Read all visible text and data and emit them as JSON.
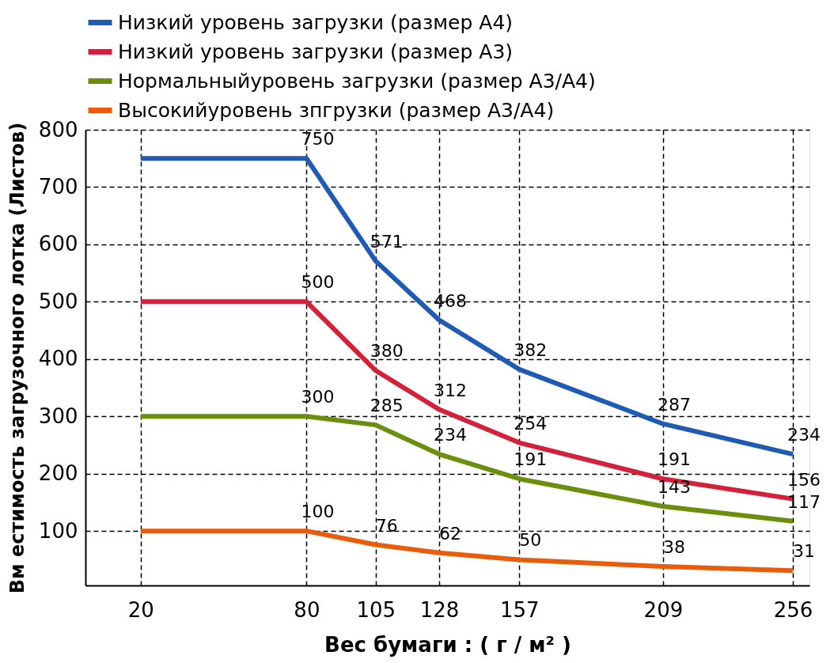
{
  "chart_data": {
    "type": "line",
    "xlabel": "Вес бумаги : ( г / м² )",
    "ylabel": "Вм естимость загрузочного лотка (Листов)",
    "x": [
      20,
      80,
      105,
      128,
      157,
      209,
      256
    ],
    "xlim": [
      0,
      262
    ],
    "xticks": [
      20,
      80,
      105,
      128,
      157,
      209,
      256
    ],
    "ylim": [
      5,
      800
    ],
    "yticks": [
      100,
      200,
      300,
      400,
      500,
      600,
      700,
      800
    ],
    "grid": true,
    "legend": "top",
    "marker": "none",
    "line_style": "solid",
    "series": [
      {
        "name": "Низкий уровень загрузки (размер A4)",
        "color": "#1f5bb5",
        "values": [
          750,
          750,
          571,
          468,
          382,
          287,
          234
        ],
        "value_labels": [
          null,
          "750",
          "571",
          "468",
          "382",
          "287",
          "234"
        ]
      },
      {
        "name": "Низкий уровень загрузки (размер A3)",
        "color": "#d5203a",
        "values": [
          500,
          500,
          380,
          312,
          254,
          191,
          156
        ],
        "value_labels": [
          null,
          "500",
          "380",
          "312",
          "254",
          "191",
          "156"
        ]
      },
      {
        "name": "Нормальныйуровень загрузки (размер A3/A4)",
        "color": "#6b8e0f",
        "values": [
          300,
          300,
          285,
          234,
          191,
          143,
          117
        ],
        "value_labels": [
          null,
          "300",
          "285",
          "234",
          "191",
          "143",
          "117"
        ]
      },
      {
        "name": "Высокийуровень зпгрузки (размер A3/A4)",
        "color": "#ea5b0c",
        "values": [
          100,
          100,
          76,
          62,
          50,
          38,
          31
        ],
        "value_labels": [
          null,
          "100",
          "76",
          "62",
          "50",
          "38",
          "31"
        ]
      }
    ]
  }
}
